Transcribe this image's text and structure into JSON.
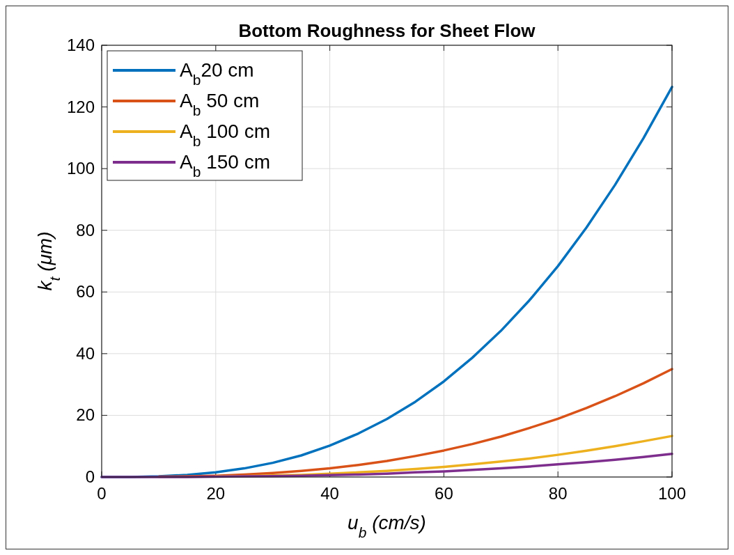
{
  "chart_data": {
    "type": "line",
    "title": "Bottom Roughness for Sheet Flow",
    "xlabel": "u$_{b}$ (cm/s)",
    "ylabel": "k$_{t}$ (μm)",
    "x": [
      0,
      5,
      10,
      15,
      20,
      25,
      30,
      35,
      40,
      45,
      50,
      55,
      60,
      65,
      70,
      75,
      80,
      85,
      90,
      95,
      100
    ],
    "series": [
      {
        "name": "A$_{b}$20 cm",
        "color": "#0072bd",
        "values": [
          0,
          0,
          0.2,
          0.7,
          1.5,
          2.8,
          4.6,
          7.0,
          10.2,
          14.1,
          18.8,
          24.4,
          31.0,
          38.7,
          47.4,
          57.3,
          68.4,
          80.9,
          94.7,
          109.9,
          126.5
        ]
      },
      {
        "name": "A$_{b}$ 50 cm",
        "color": "#d95319",
        "x": [
          10,
          15,
          20,
          25,
          30,
          35,
          40,
          45,
          50,
          55,
          60,
          65,
          70,
          75,
          80,
          85,
          90,
          95,
          100
        ],
        "values": [
          0.1,
          0.2,
          0.4,
          0.8,
          1.3,
          2.0,
          2.8,
          3.9,
          5.2,
          6.8,
          8.6,
          10.7,
          13.1,
          15.9,
          18.9,
          22.4,
          26.2,
          30.4,
          35.0
        ]
      },
      {
        "name": "A$_{b}$ 100 cm",
        "color": "#edb120",
        "x": [
          20,
          25,
          30,
          35,
          40,
          45,
          50,
          55,
          60,
          65,
          70,
          75,
          80,
          85,
          90,
          95,
          100
        ],
        "values": [
          0.2,
          0.3,
          0.5,
          0.7,
          1.1,
          1.5,
          2.0,
          2.6,
          3.3,
          4.1,
          5.0,
          6.0,
          7.2,
          8.5,
          10.0,
          11.6,
          13.3
        ]
      },
      {
        "name": "A$_{b}$ 150 cm",
        "color": "#7e2f8e",
        "values": [
          0,
          0,
          0,
          0,
          0.1,
          0.2,
          0.3,
          0.4,
          0.6,
          0.8,
          1.1,
          1.5,
          1.8,
          2.3,
          2.8,
          3.4,
          4.1,
          4.8,
          5.6,
          6.5,
          7.5
        ]
      }
    ],
    "xlim": [
      0,
      100
    ],
    "xticks": [
      0,
      20,
      40,
      60,
      80,
      100
    ],
    "ylim": [
      0,
      140
    ],
    "yticks": [
      0,
      20,
      40,
      60,
      80,
      100,
      120,
      140
    ],
    "grid": true,
    "legend": "top left",
    "line_style": "solid",
    "marker": "none"
  }
}
